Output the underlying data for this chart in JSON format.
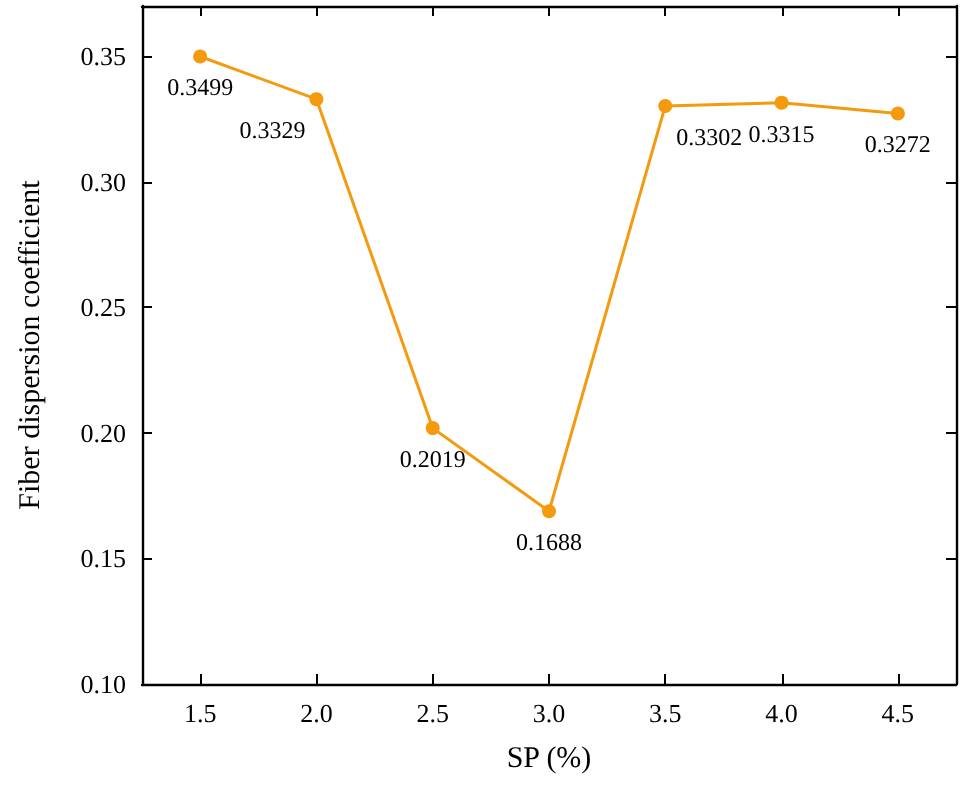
{
  "chart_data": {
    "type": "line",
    "xlabel": "SP (%)",
    "ylabel": "Fiber dispersion coefficient",
    "x": [
      1.5,
      2.0,
      2.5,
      3.0,
      3.5,
      4.0,
      4.5
    ],
    "series": [
      {
        "color": "#f39a0e",
        "values": [
          0.3499,
          0.3329,
          0.2019,
          0.1688,
          0.3302,
          0.3315,
          0.3272
        ]
      }
    ],
    "xlim": [
      1.25,
      4.75
    ],
    "xticks": [
      {
        "value": 1.5,
        "label": "1.5"
      },
      {
        "value": 2.0,
        "label": "2.0"
      },
      {
        "value": 2.5,
        "label": "2.5"
      },
      {
        "value": 3.0,
        "label": "3.0"
      },
      {
        "value": 3.5,
        "label": "3.5"
      },
      {
        "value": 4.0,
        "label": "4.0"
      },
      {
        "value": 4.5,
        "label": "4.5"
      }
    ],
    "ylim": [
      0.1,
      0.37
    ],
    "yticks": [
      {
        "value": 0.1,
        "label": "0.10"
      },
      {
        "value": 0.15,
        "label": "0.15"
      },
      {
        "value": 0.2,
        "label": "0.20"
      },
      {
        "value": 0.25,
        "label": "0.25"
      },
      {
        "value": 0.3,
        "label": "0.30"
      },
      {
        "value": 0.35,
        "label": "0.35"
      }
    ],
    "data_labels": true,
    "marker": "circle",
    "line_style": "solid",
    "grid": false
  }
}
